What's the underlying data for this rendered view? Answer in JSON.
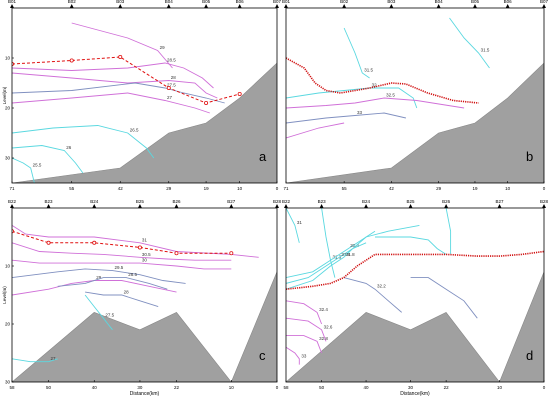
{
  "figure": {
    "shared_xlabel": "Distance(km)",
    "shared_ylabel": "Level(m)"
  },
  "chart_data": [
    {
      "panel": "a",
      "type": "line",
      "title": "",
      "xlabel": "",
      "ylabel": "Level(m)",
      "x_reversed": true,
      "xlim": [
        71,
        0
      ],
      "ylim": [
        0,
        35
      ],
      "y_inverted": true,
      "yticks": [
        10,
        20,
        30
      ],
      "station_labels": [
        "B01",
        "B02",
        "B03",
        "B04",
        "B05",
        "B06",
        "B07"
      ],
      "station_x": [
        71,
        55,
        42,
        29,
        19,
        10,
        0
      ],
      "xtick_labels": [
        "71",
        "55",
        "42",
        "29",
        "19",
        "10",
        "0"
      ],
      "seabed": [
        [
          71,
          35
        ],
        [
          42,
          32
        ],
        [
          29,
          25
        ],
        [
          19,
          23
        ],
        [
          10,
          18
        ],
        [
          0,
          11
        ],
        [
          0,
          35
        ]
      ],
      "series": [
        {
          "role": "thermocline",
          "style": "dashed-red-circles",
          "x": [
            71,
            55,
            42,
            29,
            19,
            10
          ],
          "y": [
            11.2,
            10.5,
            9.8,
            16.0,
            19.0,
            17.2
          ]
        },
        {
          "role": "isoline",
          "color": "#d070d8",
          "label": "29",
          "x": [
            55,
            40,
            32,
            28
          ],
          "y": [
            3,
            6,
            8.5,
            12
          ]
        },
        {
          "role": "isoline",
          "color": "#d070d8",
          "label": "28.5",
          "x": [
            71,
            55,
            40,
            30,
            25,
            20,
            17
          ],
          "y": [
            12,
            12.5,
            12,
            11,
            12,
            14,
            16
          ]
        },
        {
          "role": "isoline",
          "color": "#d070d8",
          "label": "28",
          "x": [
            71,
            55,
            40,
            29,
            22,
            19,
            16
          ],
          "y": [
            13,
            14,
            15,
            14.5,
            15,
            17,
            18
          ]
        },
        {
          "role": "isoline",
          "color": "#8090c0",
          "label": "27.5",
          "x": [
            71,
            55,
            38,
            30,
            25,
            19,
            14
          ],
          "y": [
            17,
            16.5,
            15,
            16,
            17,
            18,
            19
          ]
        },
        {
          "role": "isoline",
          "color": "#d070d8",
          "label": "27",
          "x": [
            71,
            55,
            40,
            30,
            22,
            18
          ],
          "y": [
            19,
            18,
            17,
            18.5,
            20,
            21
          ]
        },
        {
          "role": "isoline",
          "color": "#5ad8e0",
          "label": "26.5",
          "x": [
            71,
            60,
            48,
            40,
            35,
            33
          ],
          "y": [
            25,
            24,
            23.5,
            25,
            28,
            30
          ]
        },
        {
          "role": "isoline",
          "color": "#5ad8e0",
          "label": "26",
          "x": [
            71,
            63,
            57,
            54,
            52
          ],
          "y": [
            28,
            27.5,
            28.5,
            31,
            33
          ]
        },
        {
          "role": "isoline",
          "color": "#5ad8e0",
          "label": "25.5",
          "x": [
            71,
            68,
            66,
            65
          ],
          "y": [
            30,
            31,
            32,
            35
          ]
        }
      ]
    },
    {
      "panel": "b",
      "type": "line",
      "title": "",
      "xlabel": "",
      "ylabel": "",
      "x_reversed": true,
      "xlim": [
        71,
        0
      ],
      "ylim": [
        0,
        35
      ],
      "y_inverted": true,
      "station_labels": [
        "B01",
        "B02",
        "B03",
        "B04",
        "B05",
        "B06",
        "B07"
      ],
      "station_x": [
        71,
        55,
        42,
        29,
        19,
        10,
        0
      ],
      "xtick_labels": [
        "71",
        "55",
        "42",
        "29",
        "19",
        "10",
        "0"
      ],
      "seabed": [
        [
          71,
          35
        ],
        [
          42,
          32
        ],
        [
          29,
          25
        ],
        [
          19,
          23
        ],
        [
          10,
          18
        ],
        [
          0,
          11
        ],
        [
          0,
          35
        ]
      ],
      "series": [
        {
          "role": "halocline",
          "style": "dotted-red",
          "x": [
            71,
            66,
            63,
            60,
            56,
            48,
            42,
            38,
            32,
            25,
            18
          ],
          "y": [
            10,
            12,
            15,
            16.5,
            17,
            16,
            15,
            15.2,
            17,
            18.5,
            19
          ]
        },
        {
          "role": "isoline",
          "color": "#5ad8e0",
          "label": "31.5",
          "x": [
            26,
            22,
            18,
            15
          ],
          "y": [
            2,
            6,
            9,
            12
          ]
        },
        {
          "role": "isoline",
          "color": "#5ad8e0",
          "label": "31.5",
          "x": [
            55,
            52,
            50,
            48
          ],
          "y": [
            4,
            9,
            13,
            14
          ]
        },
        {
          "role": "isoline",
          "color": "#5ad8e0",
          "label": "32",
          "x": [
            71,
            62,
            55,
            48,
            40,
            36,
            35
          ],
          "y": [
            18,
            17,
            16.5,
            16,
            16,
            18,
            20
          ]
        },
        {
          "role": "isoline",
          "color": "#d070d8",
          "label": "32.5",
          "x": [
            71,
            60,
            52,
            44,
            35,
            22
          ],
          "y": [
            20,
            19.5,
            19,
            18,
            18.5,
            20
          ]
        },
        {
          "role": "isoline",
          "color": "#8090c0",
          "label": "33",
          "x": [
            71,
            60,
            52,
            44,
            38
          ],
          "y": [
            23,
            22,
            21.5,
            21,
            22
          ]
        },
        {
          "role": "isoline",
          "color": "#d070d8",
          "label": "",
          "x": [
            71,
            62,
            55
          ],
          "y": [
            26,
            24,
            23
          ]
        }
      ]
    },
    {
      "panel": "c",
      "type": "line",
      "title": "",
      "xlabel": "Distance(km)",
      "ylabel": "Level(m)",
      "x_reversed": true,
      "xlim": [
        58,
        0
      ],
      "ylim": [
        0,
        30
      ],
      "y_inverted": true,
      "yticks": [
        10,
        20,
        30
      ],
      "station_labels": [
        "B22",
        "B23",
        "B24",
        "B25",
        "B26",
        "B27",
        "B28"
      ],
      "station_x": [
        58,
        50,
        40,
        30,
        22,
        10,
        0
      ],
      "xtick_labels": [
        "58",
        "50",
        "40",
        "30",
        "22",
        "10",
        "0"
      ],
      "seabed": [
        [
          58,
          30
        ],
        [
          40,
          18
        ],
        [
          30,
          21
        ],
        [
          22,
          18
        ],
        [
          10,
          30
        ],
        [
          0,
          11
        ],
        [
          0,
          30
        ]
      ],
      "series": [
        {
          "role": "thermocline",
          "style": "dashed-red-circles",
          "x": [
            58,
            50,
            40,
            30,
            22,
            10
          ],
          "y": [
            4.0,
            6.0,
            6.0,
            6.8,
            7.8,
            7.8
          ]
        },
        {
          "role": "isoline",
          "color": "#d070d8",
          "label": "31",
          "x": [
            58,
            55,
            50,
            40,
            30,
            22,
            10,
            4
          ],
          "y": [
            3,
            4.5,
            5,
            5,
            6,
            7.5,
            8,
            8.5
          ]
        },
        {
          "role": "isoline",
          "color": "#d070d8",
          "label": "30.5",
          "x": [
            58,
            52,
            45,
            38,
            30,
            24,
            18,
            10
          ],
          "y": [
            6,
            7.5,
            7.8,
            8,
            8.5,
            8.8,
            9,
            9
          ]
        },
        {
          "role": "isoline",
          "color": "#d070d8",
          "label": "30",
          "x": [
            58,
            52,
            45,
            38,
            30,
            22,
            16,
            10
          ],
          "y": [
            9,
            9.5,
            9.5,
            9.5,
            9.5,
            10,
            10.5,
            10.5
          ]
        },
        {
          "role": "isoline",
          "color": "#8090c0",
          "label": "29.5",
          "x": [
            58,
            48,
            42,
            36,
            30,
            25,
            20
          ],
          "y": [
            12,
            11,
            10.5,
            10.8,
            11.5,
            12.5,
            13
          ]
        },
        {
          "role": "isoline",
          "color": "#d070d8",
          "label": "29",
          "x": [
            58,
            50,
            45,
            40,
            34,
            28,
            22
          ],
          "y": [
            15,
            14,
            13,
            12.5,
            12.5,
            13.5,
            14.5
          ]
        },
        {
          "role": "isoline",
          "color": "#8090c0",
          "label": "28.5",
          "x": [
            48,
            42,
            38,
            33,
            28,
            24
          ],
          "y": [
            13.5,
            13,
            12,
            12,
            13,
            14
          ]
        },
        {
          "role": "isoline",
          "color": "#8090c0",
          "label": "28",
          "x": [
            42,
            38,
            34,
            30,
            26
          ],
          "y": [
            14.5,
            15,
            15,
            16,
            17
          ]
        },
        {
          "role": "isoline",
          "color": "#5ad8e0",
          "label": "27.5",
          "x": [
            42,
            40,
            38,
            37,
            36
          ],
          "y": [
            15,
            17,
            19,
            20,
            21
          ]
        },
        {
          "role": "isoline",
          "color": "#5ad8e0",
          "label": "27",
          "x": [
            58,
            54,
            50,
            48
          ],
          "y": [
            26,
            26.5,
            26.5,
            26
          ]
        }
      ]
    },
    {
      "panel": "d",
      "type": "line",
      "title": "",
      "xlabel": "Distance(km)",
      "ylabel": "",
      "x_reversed": true,
      "xlim": [
        58,
        0
      ],
      "ylim": [
        0,
        30
      ],
      "y_inverted": true,
      "station_labels": [
        "B22",
        "B23",
        "B24",
        "B25",
        "B26",
        "B27",
        "B28"
      ],
      "station_x": [
        58,
        50,
        40,
        30,
        22,
        10,
        0
      ],
      "xtick_labels": [
        "58",
        "50",
        "40",
        "30",
        "22",
        "10",
        "0"
      ],
      "seabed": [
        [
          58,
          30
        ],
        [
          40,
          18
        ],
        [
          30,
          21
        ],
        [
          22,
          18
        ],
        [
          10,
          30
        ],
        [
          0,
          11
        ],
        [
          0,
          30
        ]
      ],
      "series": [
        {
          "role": "halocline",
          "style": "dotted-red",
          "x": [
            58,
            52,
            48,
            45,
            42,
            38,
            30,
            22,
            15,
            10,
            5,
            0
          ],
          "y": [
            14,
            13.5,
            13,
            12,
            10,
            8,
            8,
            8,
            8.3,
            8.3,
            8,
            7.5
          ]
        },
        {
          "role": "isoline",
          "color": "#5ad8e0",
          "label": "31",
          "x": [
            58,
            56,
            55
          ],
          "y": [
            0,
            3,
            6
          ]
        },
        {
          "role": "isoline",
          "color": "#5ad8e0",
          "label": "31.3",
          "x": [
            50,
            49,
            48,
            47
          ],
          "y": [
            0,
            5,
            9,
            12
          ]
        },
        {
          "role": "isoline",
          "color": "#5ad8e0",
          "label": "31.4",
          "x": [
            58,
            52,
            48,
            44,
            40,
            35,
            28
          ],
          "y": [
            12,
            11,
            9,
            7,
            5,
            4,
            3
          ]
        },
        {
          "role": "isoline",
          "color": "#5ad8e0",
          "label": "31.6",
          "x": [
            58,
            53,
            49,
            46,
            43,
            40,
            38
          ],
          "y": [
            13,
            12,
            10,
            8.5,
            7,
            5,
            4
          ]
        },
        {
          "role": "isoline",
          "color": "#5ad8e0",
          "label": "31.8",
          "x": [
            58,
            52,
            48,
            45,
            43,
            40
          ],
          "y": [
            14,
            12.5,
            10,
            8.5,
            7,
            6
          ]
        },
        {
          "role": "isoline",
          "color": "#5ad8e0",
          "label": "",
          "x": [
            38,
            30,
            26,
            24,
            22
          ],
          "y": [
            5,
            5,
            5.5,
            7,
            8
          ]
        },
        {
          "role": "isoline",
          "color": "#5ad8e0",
          "label": "",
          "x": [
            22,
            21,
            21
          ],
          "y": [
            0,
            4,
            8
          ]
        },
        {
          "role": "isoline",
          "color": "#8090c0",
          "label": "32.2",
          "x": [
            45,
            40,
            38,
            35,
            32
          ],
          "y": [
            12,
            13,
            14,
            16,
            18
          ]
        },
        {
          "role": "isoline",
          "color": "#8090c0",
          "label": "",
          "x": [
            30,
            26,
            22,
            18,
            15
          ],
          "y": [
            12,
            12,
            14,
            16,
            19
          ]
        },
        {
          "role": "isoline",
          "color": "#d070d8",
          "label": "32.4",
          "x": [
            58,
            54,
            51,
            50
          ],
          "y": [
            16,
            16.5,
            18,
            20
          ]
        },
        {
          "role": "isoline",
          "color": "#d070d8",
          "label": "32.6",
          "x": [
            58,
            53,
            50,
            49
          ],
          "y": [
            19,
            19.5,
            21,
            23
          ]
        },
        {
          "role": "isoline",
          "color": "#d070d8",
          "label": "32.8",
          "x": [
            58,
            54,
            51,
            50
          ],
          "y": [
            22,
            22,
            23,
            25
          ]
        },
        {
          "role": "isoline",
          "color": "#d070d8",
          "label": "33",
          "x": [
            58,
            56,
            55,
            55
          ],
          "y": [
            24,
            25,
            26,
            27
          ]
        }
      ]
    }
  ]
}
